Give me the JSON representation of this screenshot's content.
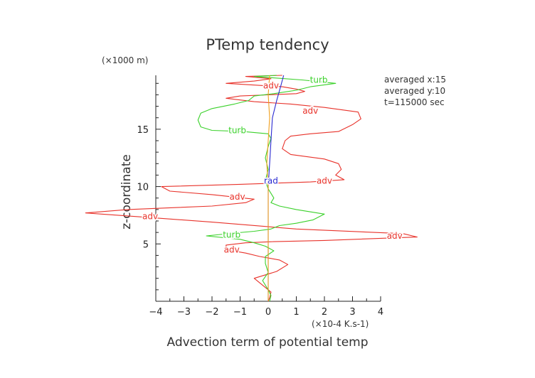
{
  "chart_data": {
    "type": "line",
    "title": "PTemp tendency",
    "xlabel": "Advection term of potential temp",
    "ylabel": "z-coordinate",
    "x_unit": "(×10-4 K.s-1)",
    "y_unit": "(×1000 m)",
    "xlim": [
      -4,
      4
    ],
    "ylim": [
      0,
      19.7
    ],
    "xticks": [
      -4,
      -3,
      -2,
      -1,
      0,
      1,
      2,
      3,
      4
    ],
    "yticks": [
      5,
      10,
      15
    ],
    "annotations": [
      "averaged  x:15",
      "averaged  y:10",
      "t=115000 sec"
    ],
    "series": [
      {
        "name": "adv",
        "color": "#e8322a",
        "labels_at": [
          {
            "x": 0.1,
            "y": 18.8
          },
          {
            "x": 1.5,
            "y": 16.6
          },
          {
            "x": 2.0,
            "y": 10.5
          },
          {
            "x": -1.1,
            "y": 9.1
          },
          {
            "x": -4.2,
            "y": 7.4
          },
          {
            "x": 4.5,
            "y": 5.7
          },
          {
            "x": -1.3,
            "y": 4.5
          }
        ],
        "points": [
          [
            0.0,
            0.0
          ],
          [
            0.05,
            0.3
          ],
          [
            0.1,
            0.8
          ],
          [
            -0.5,
            2.0
          ],
          [
            0.3,
            2.6
          ],
          [
            0.7,
            3.2
          ],
          [
            0.4,
            3.6
          ],
          [
            -0.3,
            3.9
          ],
          [
            -0.8,
            4.2
          ],
          [
            -1.5,
            4.5
          ],
          [
            -1.5,
            4.9
          ],
          [
            -0.8,
            5.1
          ],
          [
            0.2,
            5.2
          ],
          [
            2.0,
            5.3
          ],
          [
            5.3,
            5.6
          ],
          [
            4.8,
            5.9
          ],
          [
            1.0,
            6.3
          ],
          [
            -2.0,
            6.9
          ],
          [
            -4.2,
            7.3
          ],
          [
            -6.5,
            7.7
          ],
          [
            -5.0,
            8.0
          ],
          [
            -2.0,
            8.3
          ],
          [
            -0.8,
            8.6
          ],
          [
            -0.5,
            8.9
          ],
          [
            -2.0,
            9.3
          ],
          [
            -3.5,
            9.6
          ],
          [
            -3.8,
            10.0
          ],
          [
            -1.0,
            10.2
          ],
          [
            1.5,
            10.4
          ],
          [
            2.7,
            10.6
          ],
          [
            2.4,
            11.0
          ],
          [
            2.6,
            11.5
          ],
          [
            2.5,
            12.0
          ],
          [
            2.0,
            12.4
          ],
          [
            0.8,
            12.8
          ],
          [
            0.5,
            13.3
          ],
          [
            0.6,
            14.0
          ],
          [
            0.8,
            14.4
          ],
          [
            1.5,
            14.6
          ],
          [
            2.5,
            14.8
          ],
          [
            3.0,
            15.4
          ],
          [
            3.3,
            15.9
          ],
          [
            3.2,
            16.5
          ],
          [
            2.0,
            16.9
          ],
          [
            0.8,
            17.2
          ],
          [
            -0.5,
            17.4
          ],
          [
            -1.5,
            17.7
          ],
          [
            -1.0,
            17.9
          ],
          [
            1.0,
            18.1
          ],
          [
            1.3,
            18.3
          ],
          [
            1.0,
            18.5
          ],
          [
            0.5,
            18.7
          ],
          [
            -1.5,
            19.0
          ],
          [
            -0.5,
            19.2
          ],
          [
            0.1,
            19.4
          ],
          [
            -0.8,
            19.6
          ],
          [
            0.5,
            19.7
          ]
        ]
      },
      {
        "name": "turb",
        "color": "#3ad12a",
        "labels_at": [
          {
            "x": 1.8,
            "y": 19.3
          },
          {
            "x": -1.1,
            "y": 14.9
          },
          {
            "x": -1.3,
            "y": 5.8
          }
        ],
        "points": [
          [
            0.05,
            0.0
          ],
          [
            0.1,
            0.5
          ],
          [
            0.0,
            1.0
          ],
          [
            -0.2,
            1.8
          ],
          [
            0.0,
            2.5
          ],
          [
            -0.1,
            3.3
          ],
          [
            -0.1,
            3.9
          ],
          [
            0.2,
            4.4
          ],
          [
            -0.1,
            4.8
          ],
          [
            -0.5,
            5.1
          ],
          [
            -1.0,
            5.4
          ],
          [
            -2.2,
            5.7
          ],
          [
            -1.2,
            5.95
          ],
          [
            -0.5,
            6.1
          ],
          [
            0.1,
            6.3
          ],
          [
            0.4,
            6.6
          ],
          [
            1.0,
            6.8
          ],
          [
            1.6,
            7.1
          ],
          [
            2.0,
            7.6
          ],
          [
            1.0,
            8.0
          ],
          [
            0.4,
            8.3
          ],
          [
            0.1,
            8.6
          ],
          [
            0.2,
            9.0
          ],
          [
            0.0,
            9.8
          ],
          [
            -0.1,
            10.5
          ],
          [
            0.0,
            11.5
          ],
          [
            -0.1,
            12.5
          ],
          [
            0.0,
            13.5
          ],
          [
            0.1,
            14.2
          ],
          [
            0.0,
            14.6
          ],
          [
            -0.9,
            14.8
          ],
          [
            -2.0,
            14.9
          ],
          [
            -2.4,
            15.2
          ],
          [
            -2.5,
            15.8
          ],
          [
            -2.4,
            16.4
          ],
          [
            -2.0,
            16.8
          ],
          [
            -1.2,
            17.2
          ],
          [
            -0.7,
            17.5
          ],
          [
            -0.5,
            17.9
          ],
          [
            0.2,
            18.1
          ],
          [
            1.0,
            18.4
          ],
          [
            1.5,
            18.7
          ],
          [
            2.4,
            19.0
          ],
          [
            1.2,
            19.3
          ],
          [
            -0.5,
            19.6
          ],
          [
            0.3,
            19.7
          ]
        ]
      },
      {
        "name": "rad",
        "color": "#2a2ad1",
        "labels_at": [
          {
            "x": 0.1,
            "y": 10.5
          }
        ],
        "points": [
          [
            0.0,
            0.0
          ],
          [
            0.0,
            2.0
          ],
          [
            0.0,
            4.0
          ],
          [
            0.0,
            6.0
          ],
          [
            0.0,
            8.0
          ],
          [
            0.0,
            10.0
          ],
          [
            0.05,
            12.0
          ],
          [
            0.1,
            14.0
          ],
          [
            0.15,
            16.0
          ],
          [
            0.3,
            17.5
          ],
          [
            0.45,
            18.8
          ],
          [
            0.55,
            19.7
          ]
        ]
      },
      {
        "name": "",
        "color": "#f0a020",
        "points": [
          [
            0.0,
            0.0
          ],
          [
            0.0,
            10.0
          ],
          [
            -0.05,
            12.0
          ],
          [
            0.0,
            14.0
          ],
          [
            0.05,
            16.0
          ],
          [
            0.0,
            18.0
          ],
          [
            0.05,
            19.7
          ]
        ]
      }
    ]
  }
}
